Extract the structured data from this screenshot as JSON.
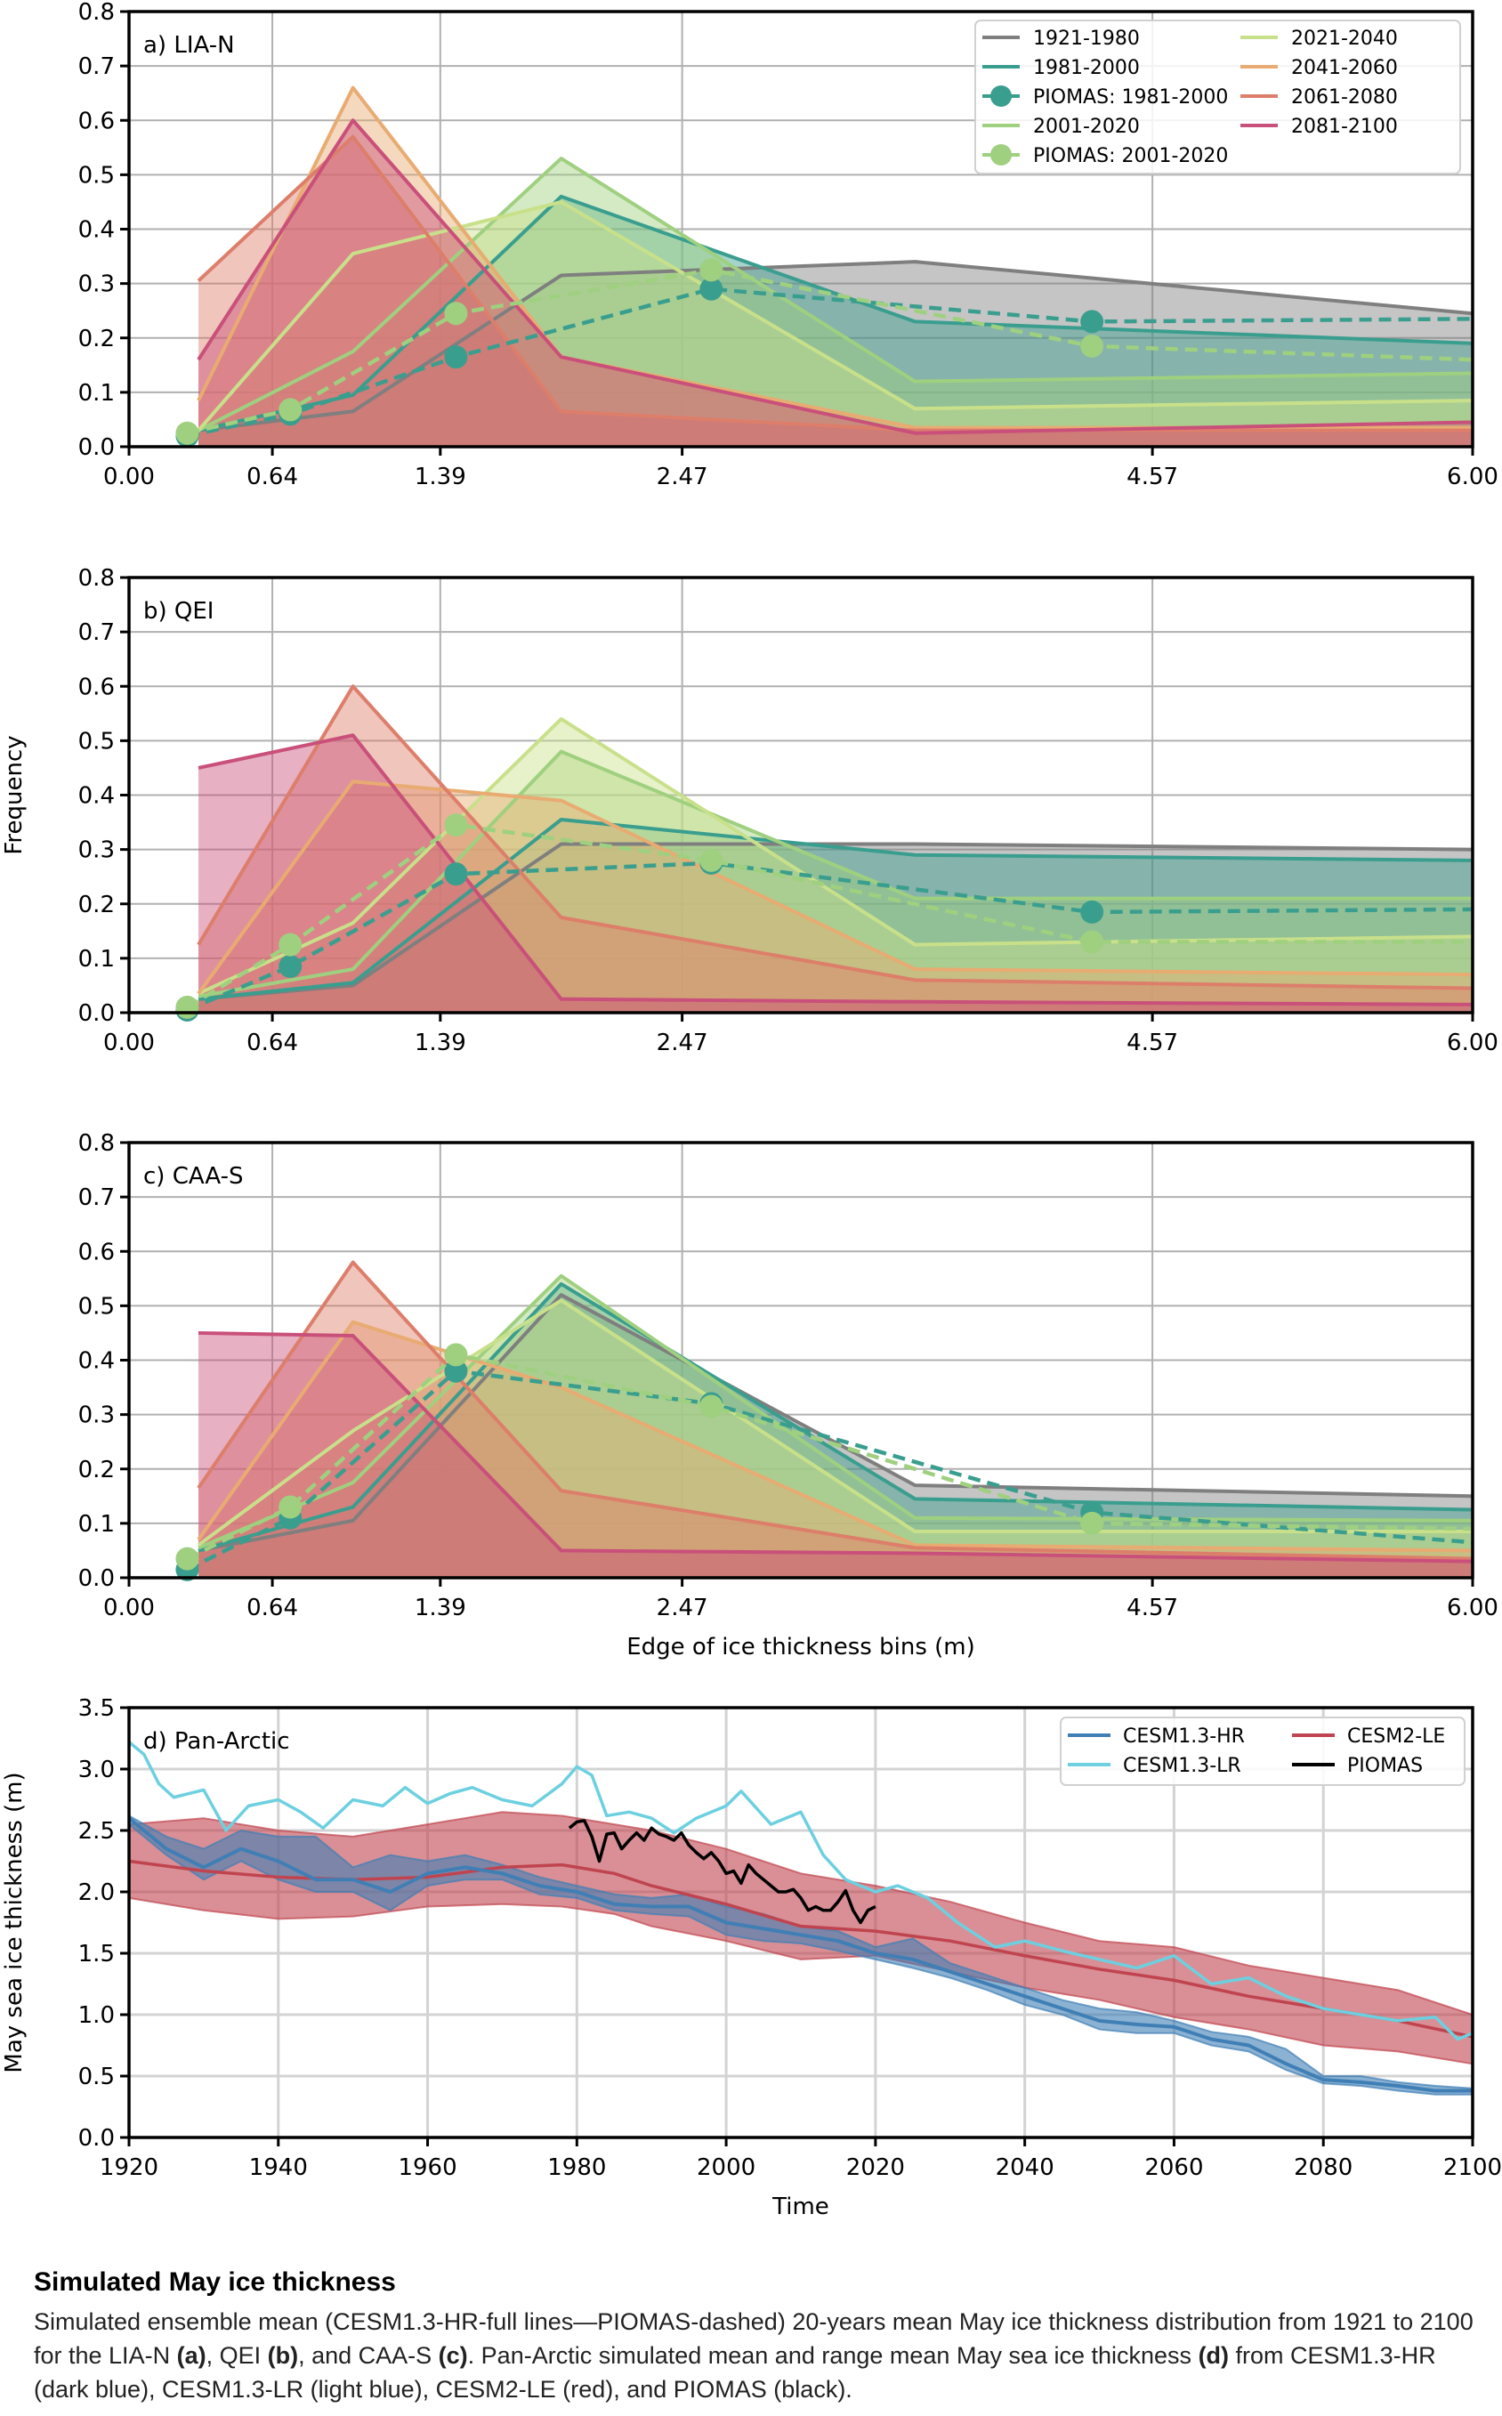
{
  "chart_data": [
    {
      "type": "area",
      "panel_label": "a) LIA-N",
      "xlabel": "",
      "ylabel": "",
      "xlim": [
        0,
        6
      ],
      "ylim": [
        0,
        0.8
      ],
      "xticks": [
        0.0,
        0.64,
        1.39,
        2.47,
        4.57,
        6.0
      ],
      "xtick_labels": [
        "0.00",
        "0.64",
        "1.39",
        "2.47",
        "4.57",
        "6.00"
      ],
      "yticks": [
        0.0,
        0.1,
        0.2,
        0.3,
        0.4,
        0.5,
        0.6,
        0.7,
        0.8
      ],
      "ytick_labels": [
        "0.0",
        "0.1",
        "0.2",
        "0.3",
        "0.4",
        "0.5",
        "0.6",
        "0.7",
        "0.8"
      ],
      "grid": true,
      "legend": "top-right",
      "x": [
        0.31,
        1.0,
        1.93,
        3.51,
        6.0
      ],
      "series": [
        {
          "name": "1921-1980",
          "color": "#7f7f7f",
          "values": [
            0.03,
            0.065,
            0.315,
            0.34,
            0.245
          ]
        },
        {
          "name": "1981-2000",
          "color": "#3a9e8f",
          "values": [
            0.03,
            0.095,
            0.46,
            0.23,
            0.19
          ]
        },
        {
          "name": "2001-2020",
          "color": "#9fd07f",
          "values": [
            0.03,
            0.175,
            0.53,
            0.12,
            0.135
          ]
        },
        {
          "name": "2021-2040",
          "color": "#c9e08a",
          "values": [
            0.03,
            0.355,
            0.45,
            0.07,
            0.085
          ]
        },
        {
          "name": "2041-2060",
          "color": "#e8ab72",
          "values": [
            0.085,
            0.66,
            0.165,
            0.035,
            0.035
          ]
        },
        {
          "name": "2061-2080",
          "color": "#dd7e6b",
          "values": [
            0.305,
            0.57,
            0.065,
            0.03,
            0.03
          ]
        },
        {
          "name": "2081-2100",
          "color": "#c9507a",
          "values": [
            0.16,
            0.6,
            0.165,
            0.025,
            0.045
          ]
        }
      ],
      "piomas": [
        {
          "name": "PIOMAS: 1981-2000",
          "color": "#3a9e8f",
          "x": [
            0.26,
            0.72,
            1.46,
            2.6,
            4.3,
            6.0
          ],
          "values": [
            0.02,
            0.06,
            0.165,
            0.29,
            0.23,
            0.235
          ]
        },
        {
          "name": "PIOMAS: 2001-2020",
          "color": "#9fd07f",
          "x": [
            0.26,
            0.72,
            1.46,
            2.6,
            4.3,
            6.0
          ],
          "values": [
            0.025,
            0.068,
            0.245,
            0.325,
            0.185,
            0.16
          ]
        }
      ]
    },
    {
      "type": "area",
      "panel_label": "b) QEI",
      "xlabel": "",
      "ylabel": "Frequency",
      "xlim": [
        0,
        6
      ],
      "ylim": [
        0,
        0.8
      ],
      "xticks": [
        0.0,
        0.64,
        1.39,
        2.47,
        4.57,
        6.0
      ],
      "xtick_labels": [
        "0.00",
        "0.64",
        "1.39",
        "2.47",
        "4.57",
        "6.00"
      ],
      "yticks": [
        0.0,
        0.1,
        0.2,
        0.3,
        0.4,
        0.5,
        0.6,
        0.7,
        0.8
      ],
      "ytick_labels": [
        "0.0",
        "0.1",
        "0.2",
        "0.3",
        "0.4",
        "0.5",
        "0.6",
        "0.7",
        "0.8"
      ],
      "grid": true,
      "x": [
        0.31,
        1.0,
        1.93,
        3.51,
        6.0
      ],
      "series": [
        {
          "name": "1921-1980",
          "color": "#7f7f7f",
          "values": [
            0.025,
            0.05,
            0.31,
            0.31,
            0.3
          ]
        },
        {
          "name": "1981-2000",
          "color": "#3a9e8f",
          "values": [
            0.025,
            0.055,
            0.355,
            0.29,
            0.28
          ]
        },
        {
          "name": "2001-2020",
          "color": "#9fd07f",
          "values": [
            0.03,
            0.08,
            0.48,
            0.21,
            0.21
          ]
        },
        {
          "name": "2021-2040",
          "color": "#c9e08a",
          "values": [
            0.035,
            0.165,
            0.54,
            0.125,
            0.14
          ]
        },
        {
          "name": "2041-2060",
          "color": "#e8ab72",
          "values": [
            0.035,
            0.425,
            0.39,
            0.08,
            0.07
          ]
        },
        {
          "name": "2061-2080",
          "color": "#dd7e6b",
          "values": [
            0.125,
            0.6,
            0.175,
            0.06,
            0.045
          ]
        },
        {
          "name": "2081-2100",
          "color": "#c9507a",
          "values": [
            0.45,
            0.51,
            0.025,
            0.02,
            0.015
          ]
        }
      ],
      "piomas": [
        {
          "name": "PIOMAS: 1981-2000",
          "color": "#3a9e8f",
          "x": [
            0.26,
            0.72,
            1.46,
            2.6,
            4.3,
            6.0
          ],
          "values": [
            0.005,
            0.085,
            0.255,
            0.275,
            0.185,
            0.19
          ]
        },
        {
          "name": "PIOMAS: 2001-2020",
          "color": "#9fd07f",
          "x": [
            0.26,
            0.72,
            1.46,
            2.6,
            4.3,
            6.0
          ],
          "values": [
            0.01,
            0.125,
            0.345,
            0.28,
            0.13,
            0.13
          ]
        }
      ]
    },
    {
      "type": "area",
      "panel_label": "c) CAA-S",
      "xlabel": "Edge of ice thickness bins (m)",
      "ylabel": "",
      "xlim": [
        0,
        6
      ],
      "ylim": [
        0,
        0.8
      ],
      "xticks": [
        0.0,
        0.64,
        1.39,
        2.47,
        4.57,
        6.0
      ],
      "xtick_labels": [
        "0.00",
        "0.64",
        "1.39",
        "2.47",
        "4.57",
        "6.00"
      ],
      "yticks": [
        0.0,
        0.1,
        0.2,
        0.3,
        0.4,
        0.5,
        0.6,
        0.7,
        0.8
      ],
      "ytick_labels": [
        "0.0",
        "0.1",
        "0.2",
        "0.3",
        "0.4",
        "0.5",
        "0.6",
        "0.7",
        "0.8"
      ],
      "grid": true,
      "x": [
        0.31,
        1.0,
        1.93,
        3.51,
        6.0
      ],
      "series": [
        {
          "name": "1921-1980",
          "color": "#7f7f7f",
          "values": [
            0.05,
            0.105,
            0.52,
            0.17,
            0.15
          ]
        },
        {
          "name": "1981-2000",
          "color": "#3a9e8f",
          "values": [
            0.05,
            0.13,
            0.54,
            0.145,
            0.125
          ]
        },
        {
          "name": "2001-2020",
          "color": "#9fd07f",
          "values": [
            0.055,
            0.175,
            0.555,
            0.11,
            0.105
          ]
        },
        {
          "name": "2021-2040",
          "color": "#c9e08a",
          "values": [
            0.06,
            0.27,
            0.51,
            0.085,
            0.085
          ]
        },
        {
          "name": "2041-2060",
          "color": "#e8ab72",
          "values": [
            0.07,
            0.47,
            0.35,
            0.06,
            0.05
          ]
        },
        {
          "name": "2061-2080",
          "color": "#dd7e6b",
          "values": [
            0.165,
            0.58,
            0.16,
            0.055,
            0.035
          ]
        },
        {
          "name": "2081-2100",
          "color": "#c9507a",
          "values": [
            0.45,
            0.445,
            0.05,
            0.045,
            0.03
          ]
        }
      ],
      "piomas": [
        {
          "name": "PIOMAS: 1981-2000",
          "color": "#3a9e8f",
          "x": [
            0.26,
            0.72,
            1.46,
            2.6,
            4.3,
            6.0
          ],
          "values": [
            0.015,
            0.11,
            0.38,
            0.32,
            0.12,
            0.065
          ]
        },
        {
          "name": "PIOMAS: 2001-2020",
          "color": "#9fd07f",
          "x": [
            0.26,
            0.72,
            1.46,
            2.6,
            4.3,
            6.0
          ],
          "values": [
            0.035,
            0.13,
            0.41,
            0.315,
            0.1,
            0.09
          ]
        }
      ]
    },
    {
      "type": "line",
      "panel_label": "d) Pan-Arctic",
      "xlabel": "Time",
      "ylabel": "May sea ice thickness (m)",
      "xlim": [
        1920,
        2100
      ],
      "ylim": [
        0,
        3.5
      ],
      "xticks": [
        1920,
        1940,
        1960,
        1980,
        2000,
        2020,
        2040,
        2060,
        2080,
        2100
      ],
      "xtick_labels": [
        "1920",
        "1940",
        "1960",
        "1980",
        "2000",
        "2020",
        "2040",
        "2060",
        "2080",
        "2100"
      ],
      "yticks": [
        0.0,
        0.5,
        1.0,
        1.5,
        2.0,
        2.5,
        3.0,
        3.5
      ],
      "ytick_labels": [
        "0.0",
        "0.5",
        "1.0",
        "1.5",
        "2.0",
        "2.5",
        "3.0",
        "3.5"
      ],
      "grid": true,
      "legend": "top-right",
      "series": [
        {
          "name": "CESM1.3-HR",
          "color": "#3f7fb5",
          "x": [
            1920,
            1925,
            1930,
            1935,
            1940,
            1945,
            1950,
            1955,
            1960,
            1965,
            1970,
            1975,
            1980,
            1985,
            1990,
            1995,
            2000,
            2005,
            2010,
            2015,
            2020,
            2025,
            2030,
            2035,
            2040,
            2045,
            2050,
            2055,
            2060,
            2065,
            2070,
            2075,
            2080,
            2085,
            2090,
            2095,
            2100
          ],
          "values": [
            2.6,
            2.35,
            2.2,
            2.35,
            2.25,
            2.1,
            2.1,
            2.0,
            2.15,
            2.2,
            2.15,
            2.05,
            2.0,
            1.9,
            1.88,
            1.88,
            1.75,
            1.7,
            1.65,
            1.6,
            1.5,
            1.45,
            1.35,
            1.25,
            1.15,
            1.05,
            0.95,
            0.92,
            0.9,
            0.8,
            0.75,
            0.6,
            0.47,
            0.45,
            0.42,
            0.38,
            0.38
          ],
          "range_low": [
            2.55,
            2.3,
            2.1,
            2.25,
            2.1,
            2.0,
            2.0,
            1.85,
            2.05,
            2.1,
            2.1,
            1.98,
            1.95,
            1.85,
            1.82,
            1.8,
            1.65,
            1.6,
            1.58,
            1.52,
            1.45,
            1.38,
            1.3,
            1.2,
            1.08,
            1.0,
            0.88,
            0.85,
            0.85,
            0.75,
            0.7,
            0.55,
            0.44,
            0.42,
            0.38,
            0.35,
            0.35
          ],
          "range_high": [
            2.62,
            2.45,
            2.35,
            2.5,
            2.45,
            2.45,
            2.2,
            2.3,
            2.25,
            2.3,
            2.22,
            2.12,
            2.05,
            1.98,
            1.95,
            1.98,
            1.88,
            1.82,
            1.72,
            1.68,
            1.55,
            1.62,
            1.42,
            1.32,
            1.22,
            1.12,
            1.05,
            1.02,
            0.95,
            0.86,
            0.82,
            0.72,
            0.5,
            0.5,
            0.45,
            0.42,
            0.4
          ]
        },
        {
          "name": "CESM1.3-LR",
          "color": "#6cd0e0",
          "x": [
            1920,
            1922,
            1924,
            1926,
            1928,
            1930,
            1933,
            1936,
            1940,
            1943,
            1946,
            1950,
            1954,
            1957,
            1960,
            1963,
            1966,
            1970,
            1974,
            1978,
            1980,
            1982,
            1984,
            1987,
            1990,
            1993,
            1996,
            2000,
            2002,
            2006,
            2010,
            2013,
            2016,
            2020,
            2023,
            2027,
            2031,
            2036,
            2040,
            2045,
            2050,
            2055,
            2060,
            2065,
            2070,
            2075,
            2080,
            2085,
            2090,
            2095,
            2098,
            2100
          ],
          "values": [
            3.22,
            3.12,
            2.88,
            2.77,
            2.8,
            2.83,
            2.5,
            2.7,
            2.75,
            2.65,
            2.52,
            2.75,
            2.7,
            2.85,
            2.72,
            2.8,
            2.85,
            2.75,
            2.7,
            2.88,
            3.02,
            2.95,
            2.62,
            2.65,
            2.6,
            2.48,
            2.6,
            2.7,
            2.82,
            2.55,
            2.65,
            2.3,
            2.1,
            2.0,
            2.05,
            1.95,
            1.75,
            1.55,
            1.6,
            1.52,
            1.45,
            1.38,
            1.48,
            1.25,
            1.3,
            1.15,
            1.05,
            1.0,
            0.95,
            0.98,
            0.8,
            0.85
          ]
        },
        {
          "name": "CESM2-LE",
          "color": "#c0444f",
          "x": [
            1920,
            1930,
            1940,
            1950,
            1960,
            1970,
            1978,
            1985,
            1990,
            2000,
            2010,
            2020,
            2030,
            2040,
            2050,
            2060,
            2070,
            2080,
            2090,
            2100
          ],
          "values": [
            2.25,
            2.17,
            2.12,
            2.1,
            2.12,
            2.2,
            2.22,
            2.15,
            2.05,
            1.9,
            1.72,
            1.68,
            1.6,
            1.48,
            1.37,
            1.28,
            1.15,
            1.05,
            0.95,
            0.82
          ],
          "range_low": [
            1.95,
            1.85,
            1.78,
            1.8,
            1.88,
            1.9,
            1.88,
            1.82,
            1.72,
            1.6,
            1.45,
            1.48,
            1.35,
            1.22,
            1.12,
            0.98,
            0.88,
            0.75,
            0.7,
            0.6
          ],
          "range_high": [
            2.55,
            2.6,
            2.5,
            2.45,
            2.55,
            2.65,
            2.62,
            2.55,
            2.5,
            2.35,
            2.15,
            2.05,
            1.92,
            1.75,
            1.6,
            1.55,
            1.4,
            1.3,
            1.2,
            1.0
          ]
        },
        {
          "name": "PIOMAS",
          "color": "#000000",
          "x": [
            1979,
            1980,
            1981,
            1982,
            1983,
            1984,
            1985,
            1986,
            1987,
            1988,
            1989,
            1990,
            1991,
            1992,
            1993,
            1994,
            1995,
            1996,
            1997,
            1998,
            1999,
            2000,
            2001,
            2002,
            2003,
            2004,
            2005,
            2006,
            2007,
            2008,
            2009,
            2010,
            2011,
            2012,
            2013,
            2014,
            2015,
            2016,
            2017,
            2018,
            2019,
            2020
          ],
          "values": [
            2.52,
            2.57,
            2.58,
            2.45,
            2.25,
            2.47,
            2.48,
            2.35,
            2.42,
            2.48,
            2.42,
            2.52,
            2.47,
            2.45,
            2.42,
            2.48,
            2.38,
            2.32,
            2.27,
            2.32,
            2.25,
            2.15,
            2.17,
            2.07,
            2.22,
            2.15,
            2.1,
            2.05,
            2.0,
            2.0,
            2.02,
            1.95,
            1.85,
            1.88,
            1.85,
            1.85,
            1.92,
            2.01,
            1.85,
            1.75,
            1.85,
            1.88
          ]
        }
      ]
    }
  ],
  "legends": {
    "distribution": [
      "1921-1980",
      "1981-2000",
      "PIOMAS: 1981-2000",
      "2001-2020",
      "PIOMAS: 2001-2020",
      "2021-2040",
      "2041-2060",
      "2061-2080",
      "2081-2100"
    ],
    "pan_arctic": [
      "CESM1.3-HR",
      "CESM1.3-LR",
      "CESM2-LE",
      "PIOMAS"
    ]
  },
  "caption": {
    "title": "Simulated May ice thickness",
    "body_parts": [
      {
        "text": "Simulated ensemble mean (CESM1.3-HR-full lines—PIOMAS-dashed) 20-years mean May ice thickness distribution from 1921 to 2100 for the LIA-N ",
        "bold": false
      },
      {
        "text": "(a)",
        "bold": true
      },
      {
        "text": ", QEI ",
        "bold": false
      },
      {
        "text": "(b)",
        "bold": true
      },
      {
        "text": ", and CAA-S ",
        "bold": false
      },
      {
        "text": "(c)",
        "bold": true
      },
      {
        "text": ". Pan-Arctic simulated mean and range mean May sea ice thickness ",
        "bold": false
      },
      {
        "text": "(d)",
        "bold": true
      },
      {
        "text": " from CESM1.3-HR (dark blue), CESM1.3-LR (light blue), CESM2-LE (red), and PIOMAS (black).",
        "bold": false
      }
    ]
  }
}
